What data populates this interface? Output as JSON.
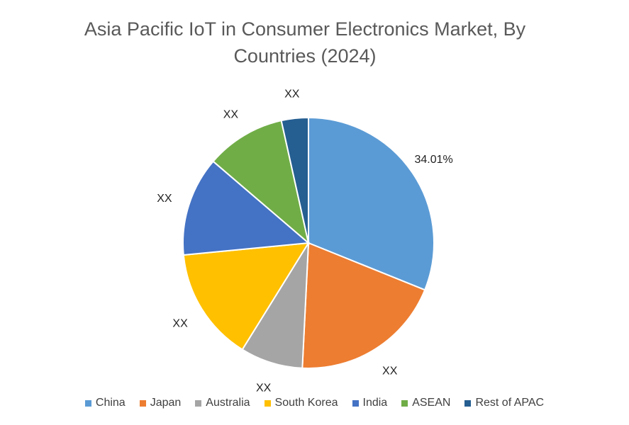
{
  "chart_data": {
    "type": "pie",
    "title_line1": "Asia Pacific IoT in Consumer Electronics Market, By",
    "title_line2": "Countries (2024)",
    "slices": [
      {
        "label": "China",
        "value": 34.01,
        "data_label": "34.01%",
        "color": "#5B9BD5"
      },
      {
        "label": "Japan",
        "value": 21.5,
        "data_label": "XX",
        "color": "#ED7D31"
      },
      {
        "label": "Australia",
        "value": 8.8,
        "data_label": "XX",
        "color": "#A5A5A5"
      },
      {
        "label": "South Korea",
        "value": 16.0,
        "data_label": "XX",
        "color": "#FFC000"
      },
      {
        "label": "India",
        "value": 14.0,
        "data_label": "XX",
        "color": "#4472C4"
      },
      {
        "label": "ASEAN",
        "value": 11.2,
        "data_label": "XX",
        "color": "#70AD47"
      },
      {
        "label": "Rest of APAC",
        "value": 3.8,
        "data_label": "XX",
        "color": "#255E91"
      }
    ],
    "legend_position": "bottom"
  }
}
